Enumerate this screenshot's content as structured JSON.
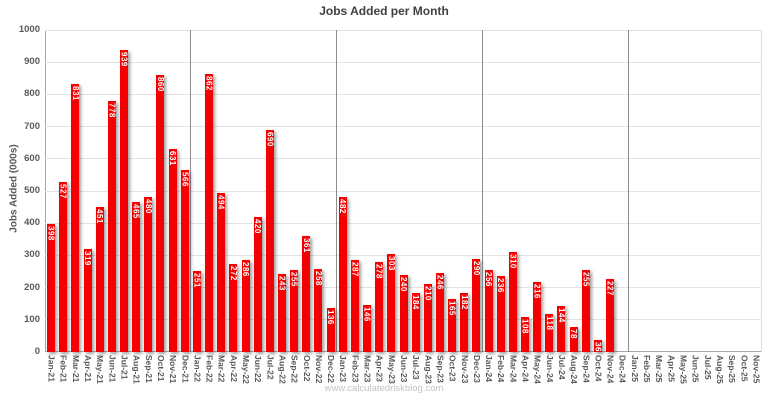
{
  "chart_data": {
    "type": "bar",
    "title": "Jobs Added per Month",
    "ylabel": "Jobs Added (000s)",
    "xlabel": "",
    "watermark": "www.calculatedriskblog.com",
    "ylim": [
      0,
      1000
    ],
    "ytick_step": 100,
    "grid": true,
    "legend": "none",
    "bar_color": "#f40000",
    "bar_label_color": "#ffffff",
    "categories": [
      "Jan-21",
      "Feb-21",
      "Mar-21",
      "Apr-21",
      "May-21",
      "Jun-21",
      "Jul-21",
      "Aug-21",
      "Sep-21",
      "Oct-21",
      "Nov-21",
      "Dec-21",
      "Jan-22",
      "Feb-22",
      "Mar-22",
      "Apr-22",
      "May-22",
      "Jun-22",
      "Jul-22",
      "Aug-22",
      "Sep-22",
      "Oct-22",
      "Nov-22",
      "Dec-22",
      "Jan-23",
      "Feb-23",
      "Mar-23",
      "Apr-23",
      "May-23",
      "Jun-23",
      "Jul-23",
      "Aug-23",
      "Sep-23",
      "Oct-23",
      "Nov-23",
      "Dec-23",
      "Jan-24",
      "Feb-24",
      "Mar-24",
      "Apr-24",
      "May-24",
      "Jun-24",
      "Jul-24",
      "Aug-24",
      "Sep-24",
      "Oct-24",
      "Nov-24",
      "Dec-24",
      "Jan-25",
      "Feb-25",
      "Mar-25",
      "Apr-25",
      "May-25",
      "Jun-25",
      "Jul-25",
      "Aug-25",
      "Sep-25",
      "Oct-25",
      "Nov-25"
    ],
    "values": [
      398,
      527,
      831,
      319,
      451,
      778,
      939,
      465,
      480,
      860,
      631,
      566,
      251,
      862,
      494,
      272,
      286,
      420,
      690,
      243,
      255,
      361,
      258,
      136,
      482,
      287,
      146,
      278,
      303,
      240,
      184,
      210,
      246,
      165,
      182,
      290,
      256,
      236,
      310,
      108,
      216,
      118,
      144,
      78,
      255,
      36,
      227,
      null,
      null,
      null,
      null,
      null,
      null,
      null,
      null,
      null,
      null,
      null,
      null
    ],
    "year_separator_after": [
      "Dec-21",
      "Dec-22",
      "Dec-23",
      "Dec-24"
    ]
  }
}
